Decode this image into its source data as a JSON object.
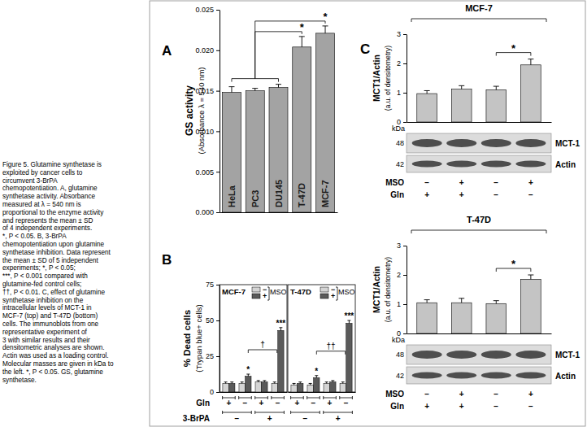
{
  "caption": [
    "Figure 5.  Glutamine synthetase is",
    "exploited by cancer cells to",
    "circumvent 3-BrPA",
    "chemopotentiation. A, glutamine",
    "synthetase activity. Absorbance",
    "measured at λ = 540 nm is",
    "proportional to the enzyme activity",
    "and represents the mean ± SD",
    "of 4 independent experiments.",
    "*, P < 0.05. B, 3-BrPA",
    "chemopotentiation upon glutamine",
    "synthetase inhibition. Data represent",
    "the mean ± SD of 5 independent",
    "experiments; *, P < 0.05;",
    "***, P < 0.001 compared with",
    "glutamine-fed control cells;",
    "††, P < 0.01. C, effect of glutamine",
    "synthetase inhibition on the",
    "intracellular levels of MCT-1 in",
    "MCF-7 (top) and T-47D (bottom)",
    "cells. The immunoblots from one",
    "representative experiment of",
    "3 with similar results and their",
    "densitometric analyses are shown.",
    "Actin was used as a loading control.",
    "Molecular masses are given in kDa to",
    "the left. *, P < 0.05. GS, glutamine",
    "synthetase."
  ],
  "chart_data": [
    {
      "panel": "A",
      "type": "bar",
      "categories": [
        "HeLa",
        "PC3",
        "DU145",
        "T-47D",
        "MCF-7"
      ],
      "values": [
        0.0148,
        0.015,
        0.0154,
        0.0204,
        0.0221
      ],
      "errors": [
        0.0007,
        0.0003,
        0.0004,
        0.0013,
        0.0009
      ],
      "marks": [
        null,
        null,
        null,
        "*",
        "*"
      ],
      "color": "#a3a3a3",
      "y_label": [
        "GS activity",
        "(Absorbance λ = 540 nm)"
      ],
      "ylim": [
        0,
        0.025
      ],
      "yticks": [
        {
          "value": 0,
          "label": "0.000"
        },
        0.005,
        {
          "value": 0.01,
          "label": "0.010"
        },
        0.015,
        {
          "value": 0.02,
          "label": "0.020"
        },
        0.025
      ]
    },
    {
      "panel": "B",
      "type": "bar",
      "y_label": [
        "% Dead cells",
        "(Trypan blue+ cells)"
      ],
      "ylim": [
        0,
        75
      ],
      "yticks": [
        0,
        25,
        50,
        75
      ],
      "legend": "upper right",
      "legend_title": "MSO",
      "conditions": [
        {
          "name": "Gln",
          "values": [
            "+",
            "−",
            "+",
            "−"
          ]
        },
        {
          "name": "3-BrPA",
          "values": [
            "−",
            "+"
          ]
        }
      ],
      "facets": [
        {
          "title": "MCF-7",
          "comparison": "†",
          "series": [
            {
              "name": "−",
              "color": "#d4d4d4",
              "values": [
                6,
                6,
                7,
                6
              ],
              "errors": [
                1,
                1,
                1,
                1
              ],
              "marks": [
                null,
                null,
                null,
                null
              ]
            },
            {
              "name": "+",
              "color": "#5a5a5a",
              "values": [
                6,
                11,
                7,
                43
              ],
              "errors": [
                1,
                1.5,
                1,
                2
              ],
              "marks": [
                null,
                "*",
                null,
                "***"
              ]
            }
          ]
        },
        {
          "title": "T-47D",
          "comparison": "††",
          "series": [
            {
              "name": "−",
              "color": "#d4d4d4",
              "values": [
                5,
                5,
                6,
                6
              ],
              "errors": [
                1,
                1,
                1,
                1
              ],
              "marks": [
                null,
                null,
                null,
                null
              ]
            },
            {
              "name": "+",
              "color": "#5a5a5a",
              "values": [
                6,
                10,
                7,
                48
              ],
              "errors": [
                1,
                1.5,
                1,
                2
              ],
              "marks": [
                null,
                "*",
                null,
                "***"
              ]
            }
          ]
        }
      ]
    },
    {
      "panel": "C",
      "type": "bar",
      "title": "MCF-7",
      "values": [
        0.97,
        1.12,
        1.1,
        1.95
      ],
      "errors": [
        0.1,
        0.12,
        0.12,
        0.2
      ],
      "marks": [
        null,
        null,
        null,
        "*"
      ],
      "color": "#c4c4c4",
      "y_label": [
        "MCT1/Actin",
        "(a.u. of densitometry)"
      ],
      "ylim": [
        0,
        3
      ],
      "yticks": [
        0,
        1,
        2,
        3
      ],
      "conditions": [
        {
          "name": "MSO",
          "values": [
            "−",
            "+",
            "−",
            "+"
          ]
        },
        {
          "name": "Gln",
          "values": [
            "+",
            "+",
            "−",
            "−"
          ]
        }
      ],
      "blot": {
        "unit": "kDa",
        "bands": [
          {
            "mass": 48,
            "name": "MCT-1"
          },
          {
            "mass": 42,
            "name": "Actin"
          }
        ]
      }
    },
    {
      "type": "bar",
      "title": "T-47D",
      "values": [
        1.05,
        1.05,
        1.02,
        1.85
      ],
      "errors": [
        0.1,
        0.15,
        0.1,
        0.15
      ],
      "marks": [
        null,
        null,
        null,
        "*"
      ],
      "color": "#c4c4c4",
      "y_label": [
        "MCT1/Actin",
        "(a.u. of densitometry)"
      ],
      "ylim": [
        0,
        3
      ],
      "yticks": [
        0,
        1,
        2,
        3
      ],
      "conditions": [
        {
          "name": "MSO",
          "values": [
            "−",
            "+",
            "−",
            "+"
          ]
        },
        {
          "name": "Gln",
          "values": [
            "+",
            "+",
            "−",
            "−"
          ]
        }
      ],
      "blot": {
        "unit": "kDa",
        "bands": [
          {
            "mass": 48,
            "name": "MCT-1"
          },
          {
            "mass": 42,
            "name": "Actin"
          }
        ]
      }
    }
  ]
}
